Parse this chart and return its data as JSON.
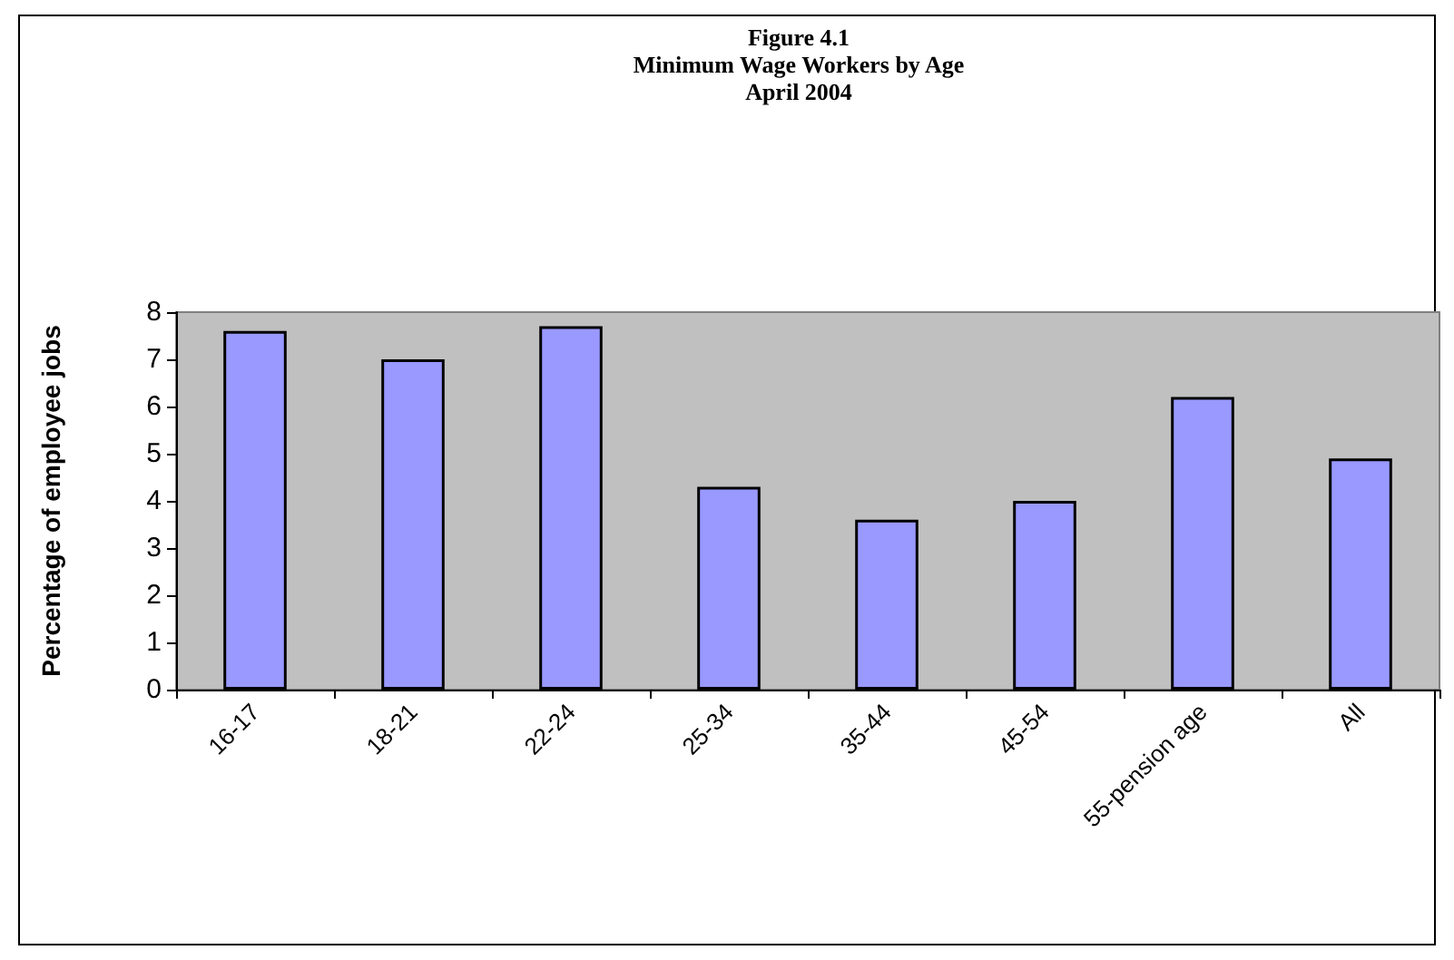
{
  "chart_data": {
    "type": "bar",
    "title": "Figure 4.1\nMinimum Wage Workers by Age\nApril 2004",
    "ylabel": "Percentage of employee jobs",
    "categories": [
      "16-17",
      "18-21",
      "22-24",
      "25-34",
      "35-44",
      "45-54",
      "55-pension age",
      "All"
    ],
    "values": [
      7.6,
      7.0,
      7.7,
      4.3,
      3.6,
      4.0,
      6.2,
      4.9
    ],
    "color": "#9999ff",
    "ylim": [
      0,
      8
    ],
    "yticks": [
      0,
      1,
      2,
      3,
      4,
      5,
      6,
      7,
      8
    ],
    "grid": false
  }
}
